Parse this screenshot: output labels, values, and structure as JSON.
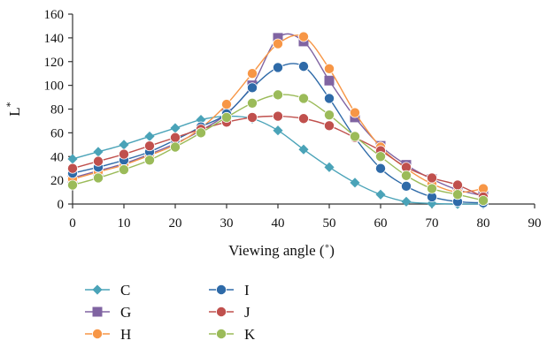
{
  "chart_data": {
    "type": "line",
    "xlabel": "Viewing angle (˚)",
    "ylabel": "L*",
    "xlim": [
      0,
      90
    ],
    "ylim": [
      0,
      160
    ],
    "xticks": [
      0,
      10,
      20,
      30,
      40,
      50,
      60,
      70,
      80,
      90
    ],
    "yticks": [
      0,
      20,
      40,
      60,
      80,
      100,
      120,
      140,
      160
    ],
    "grid": false,
    "legend_position": "bottom-left",
    "x": [
      0,
      5,
      10,
      15,
      20,
      25,
      30,
      35,
      40,
      45,
      50,
      55,
      60,
      65,
      70,
      75,
      80
    ],
    "series": [
      {
        "name": "C",
        "color": "#4aa3b8",
        "marker": "diamond",
        "values": [
          38,
          44,
          50,
          57,
          64,
          71,
          74,
          72,
          62,
          46,
          31,
          18,
          8,
          2,
          0.5,
          0,
          0
        ]
      },
      {
        "name": "G",
        "color": "#8064a2",
        "marker": "square",
        "values": [
          22,
          28,
          34,
          42,
          51,
          62,
          76,
          100,
          140,
          137,
          104,
          73,
          49,
          33,
          21,
          12,
          7
        ]
      },
      {
        "name": "H",
        "color": "#f79646",
        "marker": "circle",
        "values": [
          21,
          27,
          33,
          41,
          50,
          64,
          84,
          110,
          135,
          141,
          114,
          77,
          48,
          30,
          17,
          10,
          13
        ]
      },
      {
        "name": "I",
        "color": "#2e6aa8",
        "marker": "circle",
        "values": [
          26,
          31,
          37,
          44,
          54,
          65,
          76,
          98,
          115,
          116,
          89,
          56,
          30,
          15,
          6,
          2,
          1
        ]
      },
      {
        "name": "J",
        "color": "#c0504d",
        "marker": "circle",
        "values": [
          30,
          36,
          42,
          49,
          56,
          63,
          69,
          73,
          74,
          72,
          66,
          56,
          45,
          31,
          22,
          16,
          6
        ]
      },
      {
        "name": "K",
        "color": "#9bbb59",
        "marker": "circle",
        "values": [
          16,
          22,
          29,
          37,
          48,
          60,
          73,
          85,
          92,
          89,
          75,
          57,
          40,
          24,
          13,
          8,
          3
        ]
      }
    ]
  }
}
